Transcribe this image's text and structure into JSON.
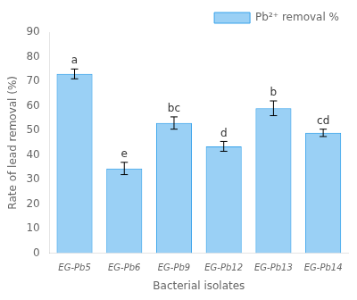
{
  "chart_data": {
    "type": "bar",
    "xlabel": "Bacterial isolates",
    "ylabel": "Rate of lead removal (%)",
    "categories": [
      "EG-Pb5",
      "EG-Pb6",
      "EG-Pb9",
      "EG-Pb12",
      "EG-Pb13",
      "EG-Pb14"
    ],
    "series": [
      {
        "name": "Pb²⁺ removal %",
        "values": [
          73.0,
          34.5,
          53.0,
          43.5,
          59.0,
          49.0
        ],
        "errors": [
          2.0,
          2.5,
          2.5,
          2.0,
          3.0,
          1.5
        ]
      }
    ],
    "annotations": [
      "a",
      "e",
      "bc",
      "d",
      "b",
      "cd"
    ],
    "ylim": [
      0,
      90
    ],
    "yticks": [
      0,
      10,
      20,
      30,
      40,
      50,
      60,
      70,
      80,
      90
    ],
    "grid": false,
    "legend": "upper right"
  }
}
